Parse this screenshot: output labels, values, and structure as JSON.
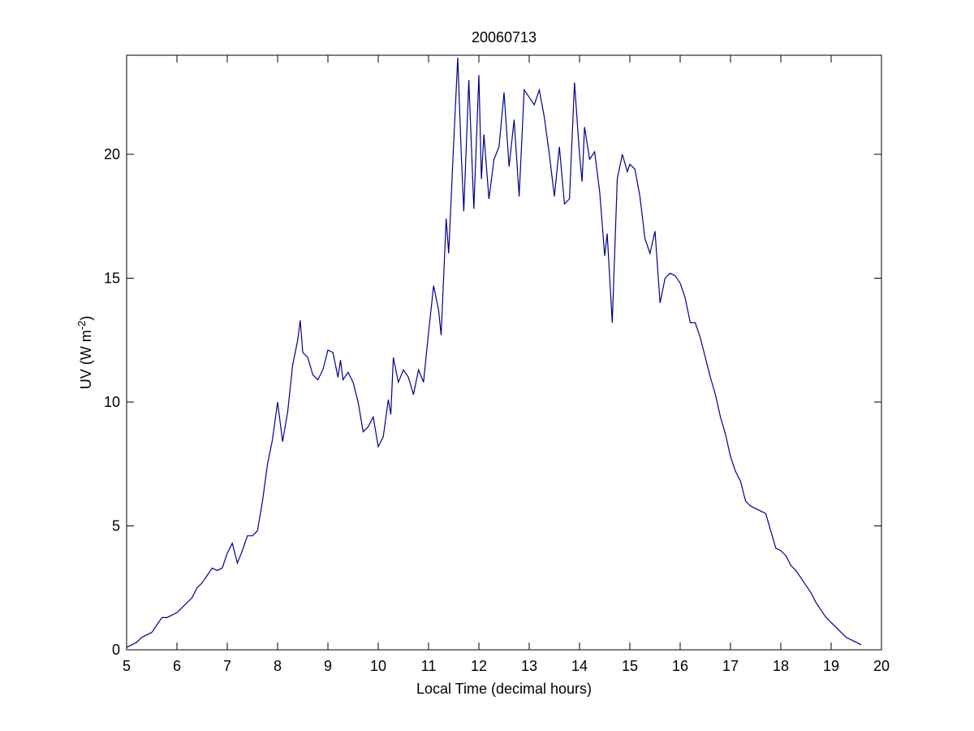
{
  "chart_data": {
    "type": "line",
    "title": "20060713",
    "xlabel": "Local Time (decimal hours)",
    "ylabel": [
      "UV (W m",
      "-2",
      ")"
    ],
    "xlim": [
      5,
      20
    ],
    "xticks": [
      5,
      6,
      7,
      8,
      9,
      10,
      11,
      12,
      13,
      14,
      15,
      16,
      17,
      18,
      19,
      20
    ],
    "ylim": [
      0,
      24
    ],
    "yticks": [
      0,
      5,
      10,
      15,
      20
    ],
    "grid": false,
    "series": [
      {
        "color": "#00008b",
        "x": [
          5.0,
          5.1,
          5.2,
          5.3,
          5.4,
          5.5,
          5.6,
          5.7,
          5.8,
          5.9,
          6.0,
          6.1,
          6.2,
          6.3,
          6.4,
          6.5,
          6.6,
          6.7,
          6.8,
          6.9,
          7.0,
          7.1,
          7.2,
          7.3,
          7.4,
          7.5,
          7.6,
          7.7,
          7.8,
          7.9,
          8.0,
          8.1,
          8.2,
          8.3,
          8.4,
          8.45,
          8.5,
          8.6,
          8.7,
          8.8,
          8.9,
          9.0,
          9.1,
          9.2,
          9.25,
          9.3,
          9.4,
          9.5,
          9.6,
          9.7,
          9.8,
          9.9,
          10.0,
          10.1,
          10.2,
          10.25,
          10.3,
          10.4,
          10.5,
          10.6,
          10.7,
          10.8,
          10.9,
          11.0,
          11.1,
          11.2,
          11.25,
          11.35,
          11.4,
          11.5,
          11.58,
          11.65,
          11.7,
          11.8,
          11.9,
          12.0,
          12.05,
          12.1,
          12.2,
          12.3,
          12.4,
          12.5,
          12.6,
          12.7,
          12.8,
          12.9,
          13.0,
          13.1,
          13.2,
          13.3,
          13.4,
          13.5,
          13.6,
          13.7,
          13.8,
          13.9,
          14.0,
          14.05,
          14.1,
          14.2,
          14.3,
          14.4,
          14.5,
          14.55,
          14.65,
          14.75,
          14.85,
          14.95,
          15.0,
          15.1,
          15.2,
          15.3,
          15.4,
          15.5,
          15.6,
          15.7,
          15.8,
          15.9,
          16.0,
          16.1,
          16.2,
          16.3,
          16.4,
          16.5,
          16.6,
          16.7,
          16.8,
          16.9,
          17.0,
          17.1,
          17.2,
          17.3,
          17.4,
          17.5,
          17.6,
          17.7,
          17.8,
          17.9,
          18.0,
          18.1,
          18.2,
          18.3,
          18.4,
          18.5,
          18.6,
          18.7,
          18.8,
          18.9,
          19.0,
          19.1,
          19.2,
          19.3,
          19.4,
          19.5,
          19.6
        ],
        "values": [
          0.1,
          0.2,
          0.3,
          0.5,
          0.6,
          0.7,
          1.0,
          1.3,
          1.3,
          1.4,
          1.5,
          1.7,
          1.9,
          2.1,
          2.5,
          2.7,
          3.0,
          3.3,
          3.2,
          3.3,
          3.9,
          4.3,
          3.5,
          4.0,
          4.6,
          4.6,
          4.8,
          6.0,
          7.5,
          8.5,
          10.0,
          8.4,
          9.6,
          11.5,
          12.5,
          13.3,
          12.0,
          11.8,
          11.1,
          10.9,
          11.3,
          12.1,
          12.0,
          11.0,
          11.7,
          10.9,
          11.2,
          10.8,
          10.0,
          8.8,
          9.0,
          9.4,
          8.2,
          8.6,
          10.1,
          9.5,
          11.8,
          10.8,
          11.3,
          11.0,
          10.3,
          11.3,
          10.8,
          12.8,
          14.7,
          13.7,
          12.7,
          17.4,
          16.0,
          20.5,
          23.9,
          20.0,
          17.7,
          23.0,
          17.8,
          23.2,
          19.0,
          20.8,
          18.2,
          19.8,
          20.3,
          22.5,
          19.5,
          21.4,
          18.3,
          22.6,
          22.3,
          22.0,
          22.6,
          21.5,
          20.0,
          18.3,
          20.3,
          18.0,
          18.2,
          22.9,
          20.0,
          18.9,
          21.1,
          19.8,
          20.1,
          18.5,
          15.9,
          16.8,
          13.2,
          19.0,
          20.0,
          19.3,
          19.6,
          19.4,
          18.3,
          16.6,
          16.0,
          16.9,
          14.0,
          15.0,
          15.2,
          15.1,
          14.8,
          14.2,
          13.2,
          13.2,
          12.6,
          11.8,
          11.0,
          10.3,
          9.4,
          8.7,
          7.8,
          7.2,
          6.8,
          6.0,
          5.8,
          5.7,
          5.6,
          5.5,
          4.8,
          4.1,
          4.0,
          3.8,
          3.4,
          3.2,
          2.9,
          2.6,
          2.3,
          1.9,
          1.6,
          1.3,
          1.1,
          0.9,
          0.7,
          0.5,
          0.4,
          0.3,
          0.2
        ]
      }
    ]
  }
}
